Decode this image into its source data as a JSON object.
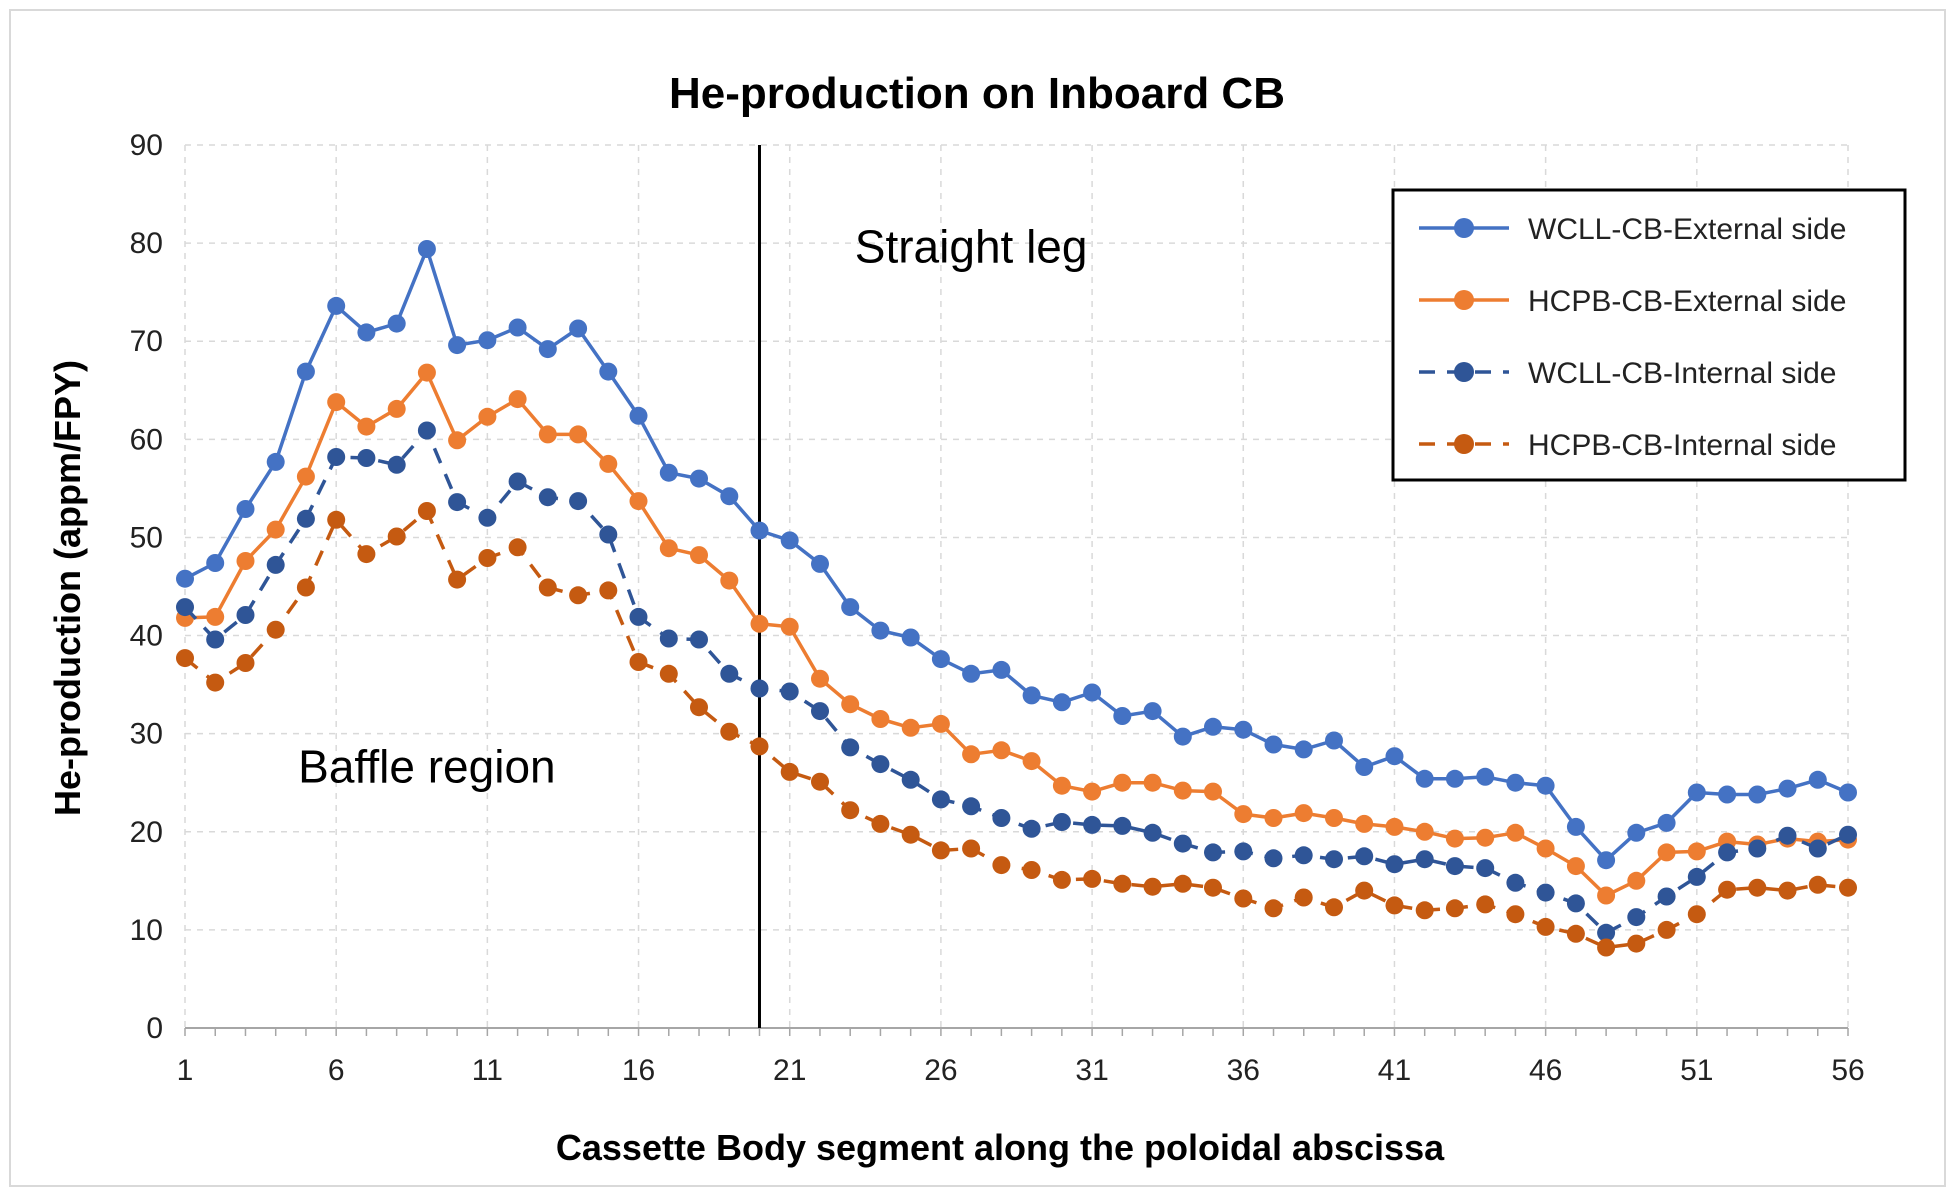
{
  "chart_data": {
    "type": "line",
    "title": "He-production on Inboard CB",
    "xlabel": "Cassette Body segment along the poloidal abscissa",
    "ylabel": "He-production (appm/FPY)",
    "xlim": [
      1,
      56
    ],
    "ylim": [
      0,
      90
    ],
    "yticks": [
      0,
      10,
      20,
      30,
      40,
      50,
      60,
      70,
      80,
      90
    ],
    "xticks": [
      1,
      6,
      11,
      16,
      21,
      26,
      31,
      36,
      41,
      46,
      51,
      56
    ],
    "divider_x": 20,
    "annotations": [
      {
        "text": "Straight leg",
        "x": 27,
        "y": 78
      },
      {
        "text": "Baffle region",
        "x": 9,
        "y": 25
      }
    ],
    "legend_position": "top-right",
    "series": [
      {
        "name": "WCLL-CB-External side",
        "color": "#4472C4",
        "style": "solid",
        "values": [
          45.8,
          47.4,
          52.9,
          57.7,
          66.9,
          73.6,
          70.9,
          71.8,
          79.4,
          69.6,
          70.1,
          71.4,
          69.2,
          71.3,
          66.9,
          62.4,
          56.6,
          56.0,
          54.2,
          50.7,
          49.7,
          47.3,
          42.9,
          40.5,
          39.8,
          37.6,
          36.1,
          36.5,
          33.9,
          33.2,
          34.2,
          31.8,
          32.3,
          29.7,
          30.7,
          30.4,
          28.9,
          28.4,
          29.3,
          26.6,
          27.7,
          25.4,
          25.4,
          25.6,
          25.0,
          24.7,
          20.5,
          17.1,
          19.9,
          20.9,
          24.0,
          23.8,
          23.8,
          24.4,
          25.3,
          24.0
        ]
      },
      {
        "name": "HCPB-CB-External side",
        "color": "#ED7D31",
        "style": "solid",
        "values": [
          41.8,
          41.9,
          47.6,
          50.8,
          56.2,
          63.8,
          61.3,
          63.1,
          66.8,
          59.9,
          62.3,
          64.1,
          60.5,
          60.5,
          57.5,
          53.7,
          48.9,
          48.2,
          45.6,
          41.2,
          40.9,
          35.6,
          33.0,
          31.5,
          30.6,
          31.0,
          27.9,
          28.3,
          27.2,
          24.7,
          24.1,
          25.0,
          25.0,
          24.2,
          24.1,
          21.8,
          21.4,
          21.9,
          21.4,
          20.8,
          20.5,
          20.0,
          19.3,
          19.4,
          19.9,
          18.3,
          16.5,
          13.5,
          15.0,
          17.9,
          18.0,
          19.0,
          18.7,
          19.3,
          19.0,
          19.2
        ]
      },
      {
        "name": "WCLL-CB-Internal side",
        "color": "#2F5597",
        "style": "dashed",
        "values": [
          42.9,
          39.6,
          42.1,
          47.2,
          51.9,
          58.2,
          58.1,
          57.4,
          60.9,
          53.6,
          52.0,
          55.7,
          54.1,
          53.7,
          50.3,
          41.9,
          39.7,
          39.6,
          36.1,
          34.6,
          34.3,
          32.3,
          28.6,
          26.9,
          25.3,
          23.3,
          22.6,
          21.4,
          20.3,
          21.0,
          20.7,
          20.6,
          19.9,
          18.8,
          17.9,
          18.0,
          17.3,
          17.6,
          17.2,
          17.5,
          16.7,
          17.2,
          16.5,
          16.3,
          14.8,
          13.8,
          12.7,
          9.7,
          11.3,
          13.4,
          15.4,
          17.9,
          18.3,
          19.6,
          18.3,
          19.7
        ]
      },
      {
        "name": "HCPB-CB-Internal side",
        "color": "#C55A11",
        "style": "dashed",
        "values": [
          37.7,
          35.2,
          37.2,
          40.6,
          44.9,
          51.8,
          48.3,
          50.1,
          52.7,
          45.7,
          47.9,
          49.0,
          44.9,
          44.1,
          44.6,
          37.3,
          36.1,
          32.7,
          30.2,
          28.7,
          26.1,
          25.1,
          22.2,
          20.8,
          19.7,
          18.1,
          18.3,
          16.6,
          16.1,
          15.1,
          15.2,
          14.7,
          14.4,
          14.7,
          14.3,
          13.2,
          12.2,
          13.3,
          12.3,
          14.0,
          12.5,
          12.0,
          12.2,
          12.6,
          11.6,
          10.3,
          9.6,
          8.2,
          8.6,
          10.0,
          11.6,
          14.1,
          14.3,
          14.0,
          14.6,
          14.3
        ]
      }
    ]
  }
}
